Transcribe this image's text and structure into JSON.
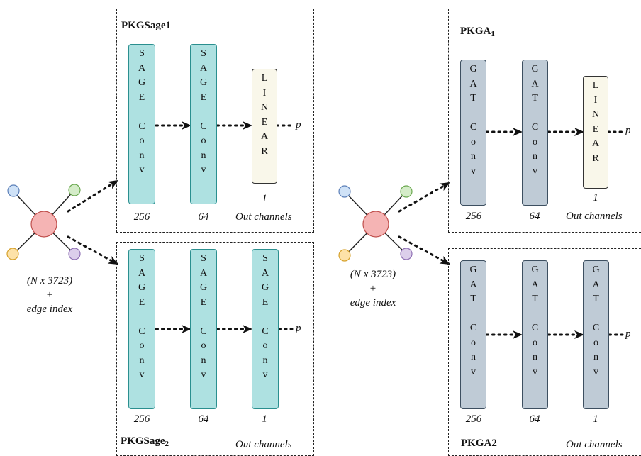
{
  "colors": {
    "sage_fill": "#aee1e1",
    "gat_fill": "#bfcbd6",
    "linear_fill": "#f9f7ea",
    "node_center": "#f5b4b4",
    "node_blue": "#cfe2f7",
    "node_green": "#d4ecc8",
    "node_yellow": "#fde2a8",
    "node_purple": "#dccfeb"
  },
  "left_input": {
    "dims": "(N x 3723)",
    "plus": "+",
    "edge": "edge index"
  },
  "right_input": {
    "dims": "(N x 3723)",
    "plus": "+",
    "edge": "edge index"
  },
  "pkgsage1": {
    "title": "PKGSage1",
    "layers": [
      "SAGE Conv",
      "SAGE Conv",
      "LINEAR"
    ],
    "channels": [
      "256",
      "64",
      "1"
    ],
    "out_label": "Out channels",
    "output": "p"
  },
  "pkgsage2": {
    "title_main": "PKGSage",
    "title_sub": "2",
    "layers": [
      "SAGE Conv",
      "SAGE Conv",
      "SAGE Conv"
    ],
    "channels": [
      "256",
      "64",
      "1"
    ],
    "out_label": "Out channels",
    "output": "p"
  },
  "pkga1": {
    "title_main": "PKGA",
    "title_sub": "1",
    "layers": [
      "GAT Conv",
      "GAT Conv",
      "LINEAR"
    ],
    "channels": [
      "256",
      "64",
      "1"
    ],
    "out_label": "Out channels",
    "output": "p"
  },
  "pkga2": {
    "title": "PKGA2",
    "layers": [
      "GAT Conv",
      "GAT Conv",
      "GAT Conv"
    ],
    "channels": [
      "256",
      "64",
      "1"
    ],
    "out_label": "Out channels",
    "output": "p"
  }
}
